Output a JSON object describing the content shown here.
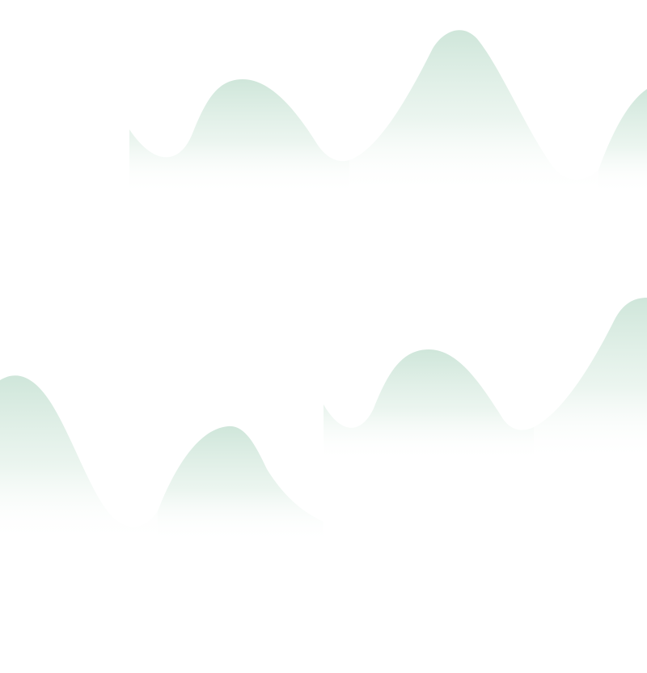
{
  "background_color": "#ffffff",
  "hill_color": "#cfe6da",
  "hill_fade_color": "#ffffff"
}
